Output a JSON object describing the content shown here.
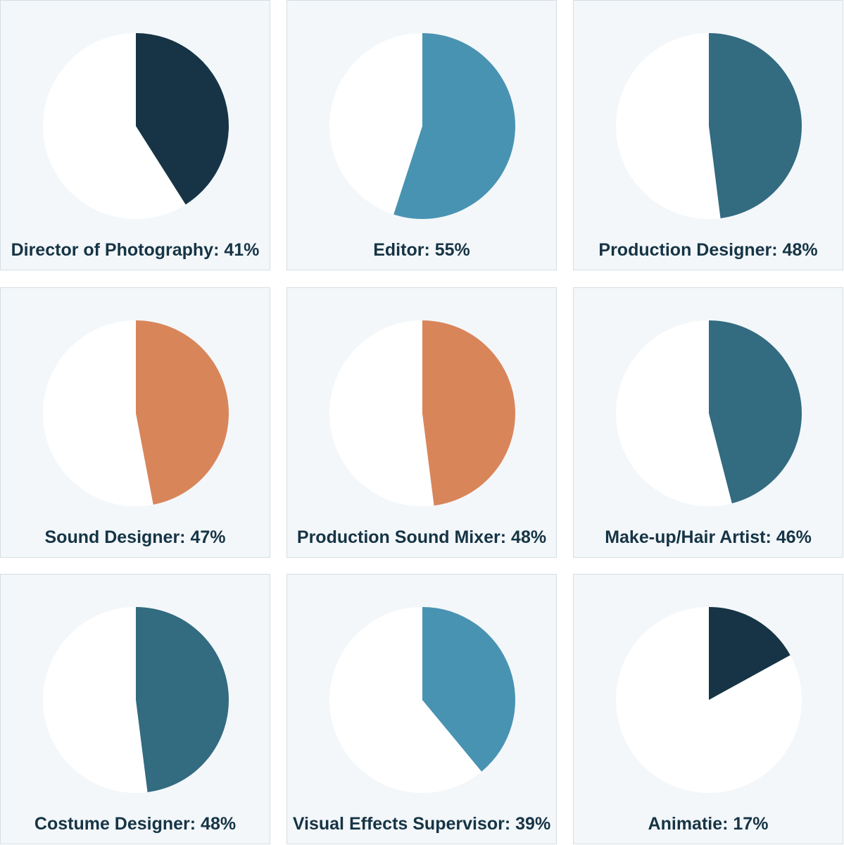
{
  "chart_data": [
    {
      "type": "pie",
      "role": "Director of Photography",
      "value": 41,
      "caption": "Director of Photography: 41%",
      "color": "#163445"
    },
    {
      "type": "pie",
      "role": "Editor",
      "value": 55,
      "caption": "Editor: 55%",
      "color": "#4993b2"
    },
    {
      "type": "pie",
      "role": "Production Designer",
      "value": 48,
      "caption": "Production Designer: 48%",
      "color": "#336b80"
    },
    {
      "type": "pie",
      "role": "Sound Designer",
      "value": 47,
      "caption": "Sound Designer: 47%",
      "color": "#d9855a"
    },
    {
      "type": "pie",
      "role": "Production Sound Mixer",
      "value": 48,
      "caption": "Production Sound Mixer: 48%",
      "color": "#d9855a"
    },
    {
      "type": "pie",
      "role": "Make-up/Hair Artist",
      "value": 46,
      "caption": "Make-up/Hair Artist: 46%",
      "color": "#336b80"
    },
    {
      "type": "pie",
      "role": "Costume Designer",
      "value": 48,
      "caption": "Costume Designer: 48%",
      "color": "#336b80"
    },
    {
      "type": "pie",
      "role": "Visual Effects Supervisor",
      "value": 39,
      "caption": "Visual Effects Supervisor: 39%",
      "color": "#4993b2"
    },
    {
      "type": "pie",
      "role": "Animatie",
      "value": 17,
      "caption": "Animatie: 17%",
      "color": "#163445"
    }
  ],
  "colors": {
    "remainder": "#ffffff",
    "card_background": "#f3f7fa",
    "label_text": "#163445"
  }
}
